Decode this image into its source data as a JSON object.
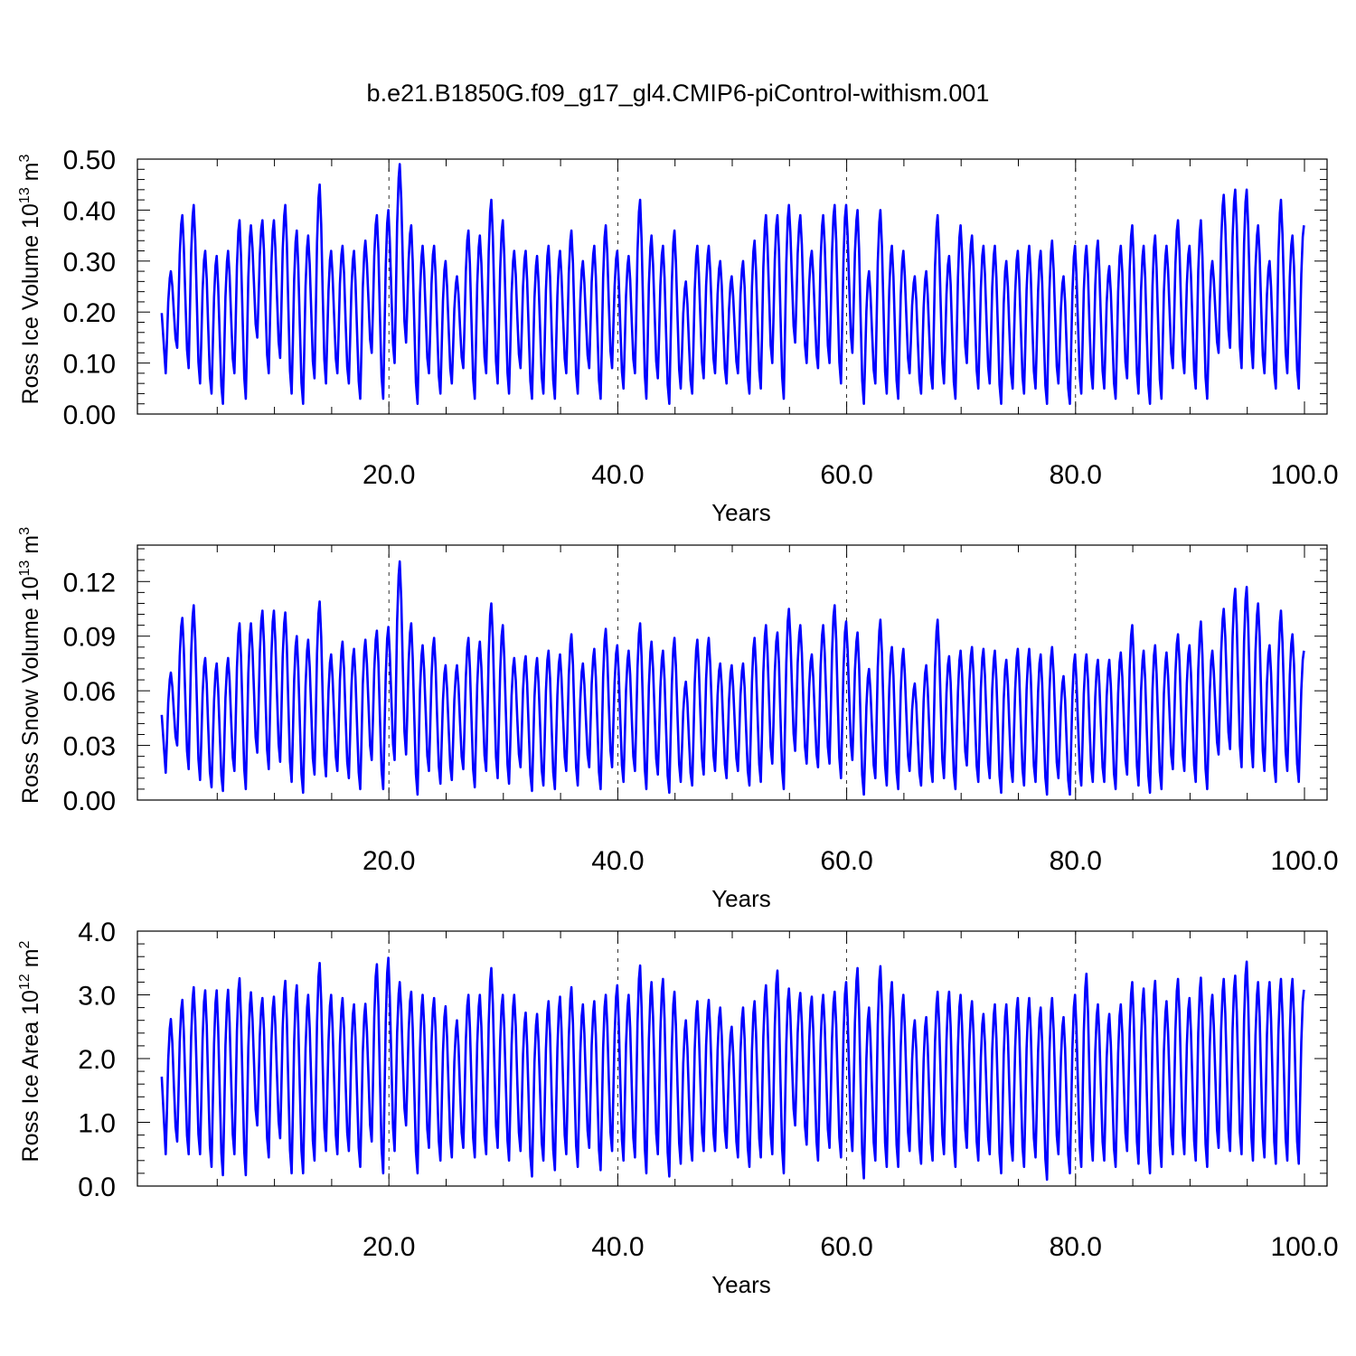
{
  "title": "b.e21.B1850G.f09_g17_gl4.CMIP6-piControl-withism.001",
  "line_color": "#0000ff",
  "chart_data": [
    {
      "type": "line",
      "ylabel": "Ross Ice Volume 10",
      "ylabel_exp": "13",
      "ylabel_unit": " m",
      "ylabel_unit_exp": "3",
      "xlabel": "Years",
      "xlim": [
        0.0,
        100.0
      ],
      "ylim": [
        0.0,
        0.5
      ],
      "xticks": [
        20,
        40,
        60,
        80,
        100
      ],
      "xticklabels": [
        "20.0",
        "40.0",
        "60.0",
        "80.0",
        "100.0"
      ],
      "yticks": [
        0.0,
        0.1,
        0.2,
        0.3,
        0.4,
        0.5
      ],
      "yticklabels": [
        "0.00",
        "0.10",
        "0.20",
        "0.30",
        "0.40",
        "0.50"
      ],
      "grid": "vertical dashed at major x ticks",
      "series": [
        {
          "years_start": 0.5,
          "peaks": [
            0.28,
            0.39,
            0.41,
            0.32,
            0.31,
            0.32,
            0.38,
            0.37,
            0.38,
            0.38,
            0.41,
            0.36,
            0.35,
            0.45,
            0.32,
            0.33,
            0.32,
            0.34,
            0.39,
            0.4,
            0.49,
            0.37,
            0.33,
            0.33,
            0.3,
            0.27,
            0.36,
            0.35,
            0.42,
            0.38,
            0.32,
            0.32,
            0.31,
            0.33,
            0.32,
            0.36,
            0.3,
            0.33,
            0.37,
            0.32,
            0.31,
            0.42,
            0.35,
            0.33,
            0.36,
            0.26,
            0.33,
            0.33,
            0.3,
            0.27,
            0.3,
            0.34,
            0.39,
            0.39,
            0.41,
            0.39,
            0.32,
            0.39,
            0.41,
            0.41,
            0.4,
            0.28,
            0.4,
            0.33,
            0.32,
            0.27,
            0.28,
            0.39,
            0.31,
            0.37,
            0.35,
            0.33,
            0.33,
            0.3,
            0.32,
            0.33,
            0.32,
            0.34,
            0.27,
            0.33,
            0.33,
            0.34,
            0.29,
            0.33,
            0.37,
            0.33,
            0.35,
            0.33,
            0.38,
            0.33,
            0.38,
            0.3,
            0.43,
            0.44,
            0.44,
            0.37,
            0.3,
            0.42,
            0.35,
            0.37
          ],
          "troughs": [
            0.08,
            0.13,
            0.09,
            0.06,
            0.04,
            0.02,
            0.08,
            0.03,
            0.15,
            0.08,
            0.11,
            0.04,
            0.02,
            0.07,
            0.06,
            0.08,
            0.06,
            0.03,
            0.12,
            0.03,
            0.1,
            0.14,
            0.02,
            0.08,
            0.04,
            0.06,
            0.09,
            0.03,
            0.08,
            0.06,
            0.04,
            0.09,
            0.03,
            0.04,
            0.03,
            0.08,
            0.04,
            0.09,
            0.03,
            0.09,
            0.05,
            0.08,
            0.03,
            0.07,
            0.02,
            0.05,
            0.04,
            0.07,
            0.08,
            0.06,
            0.08,
            0.04,
            0.05,
            0.1,
            0.03,
            0.14,
            0.1,
            0.09,
            0.1,
            0.06,
            0.12,
            0.02,
            0.06,
            0.04,
            0.03,
            0.08,
            0.04,
            0.05,
            0.06,
            0.03,
            0.1,
            0.05,
            0.06,
            0.02,
            0.05,
            0.04,
            0.05,
            0.02,
            0.06,
            0.02,
            0.04,
            0.05,
            0.05,
            0.03,
            0.07,
            0.04,
            0.02,
            0.03,
            0.09,
            0.08,
            0.05,
            0.03,
            0.12,
            0.13,
            0.09,
            0.09,
            0.08,
            0.05,
            0.08,
            0.05
          ]
        }
      ]
    },
    {
      "type": "line",
      "ylabel": "Ross Snow Volume 10",
      "ylabel_exp": "13",
      "ylabel_unit": " m",
      "ylabel_unit_exp": "3",
      "xlabel": "Years",
      "xlim": [
        0.0,
        100.0
      ],
      "ylim": [
        0.0,
        0.14
      ],
      "xticks": [
        20,
        40,
        60,
        80,
        100
      ],
      "xticklabels": [
        "20.0",
        "40.0",
        "60.0",
        "80.0",
        "100.0"
      ],
      "yticks": [
        0.0,
        0.03,
        0.06,
        0.09,
        0.12
      ],
      "yticklabels": [
        "0.00",
        "0.03",
        "0.06",
        "0.09",
        "0.12"
      ],
      "grid": "vertical dashed at major x ticks",
      "series": [
        {
          "years_start": 0.5,
          "peaks": [
            0.07,
            0.1,
            0.107,
            0.078,
            0.075,
            0.078,
            0.097,
            0.097,
            0.104,
            0.104,
            0.103,
            0.09,
            0.088,
            0.109,
            0.08,
            0.087,
            0.083,
            0.088,
            0.093,
            0.095,
            0.131,
            0.097,
            0.085,
            0.089,
            0.074,
            0.074,
            0.089,
            0.087,
            0.108,
            0.096,
            0.078,
            0.079,
            0.078,
            0.082,
            0.08,
            0.091,
            0.075,
            0.083,
            0.094,
            0.085,
            0.082,
            0.097,
            0.087,
            0.082,
            0.089,
            0.065,
            0.088,
            0.089,
            0.075,
            0.074,
            0.075,
            0.089,
            0.096,
            0.092,
            0.105,
            0.096,
            0.08,
            0.096,
            0.107,
            0.098,
            0.092,
            0.072,
            0.099,
            0.084,
            0.083,
            0.064,
            0.074,
            0.099,
            0.079,
            0.082,
            0.084,
            0.083,
            0.082,
            0.077,
            0.083,
            0.083,
            0.08,
            0.084,
            0.068,
            0.08,
            0.08,
            0.077,
            0.077,
            0.081,
            0.096,
            0.082,
            0.085,
            0.081,
            0.091,
            0.085,
            0.098,
            0.082,
            0.105,
            0.116,
            0.117,
            0.108,
            0.085,
            0.104,
            0.091,
            0.082
          ],
          "troughs": [
            0.015,
            0.03,
            0.017,
            0.011,
            0.007,
            0.005,
            0.016,
            0.006,
            0.026,
            0.017,
            0.021,
            0.01,
            0.004,
            0.014,
            0.013,
            0.016,
            0.012,
            0.006,
            0.022,
            0.006,
            0.022,
            0.025,
            0.003,
            0.016,
            0.009,
            0.011,
            0.017,
            0.007,
            0.016,
            0.012,
            0.009,
            0.018,
            0.005,
            0.008,
            0.006,
            0.016,
            0.008,
            0.018,
            0.006,
            0.018,
            0.01,
            0.016,
            0.006,
            0.014,
            0.004,
            0.01,
            0.008,
            0.014,
            0.016,
            0.012,
            0.016,
            0.008,
            0.01,
            0.02,
            0.006,
            0.027,
            0.02,
            0.018,
            0.02,
            0.012,
            0.022,
            0.003,
            0.012,
            0.008,
            0.006,
            0.016,
            0.008,
            0.01,
            0.012,
            0.006,
            0.019,
            0.01,
            0.012,
            0.004,
            0.01,
            0.008,
            0.01,
            0.003,
            0.012,
            0.003,
            0.008,
            0.01,
            0.01,
            0.006,
            0.014,
            0.008,
            0.004,
            0.006,
            0.017,
            0.016,
            0.01,
            0.006,
            0.025,
            0.028,
            0.018,
            0.018,
            0.016,
            0.01,
            0.016,
            0.01
          ]
        }
      ]
    },
    {
      "type": "line",
      "ylabel": "Ross Ice Area 10",
      "ylabel_exp": "12",
      "ylabel_unit": " m",
      "ylabel_unit_exp": "2",
      "xlabel": "Years",
      "xlim": [
        0.0,
        100.0
      ],
      "ylim": [
        0.0,
        4.0
      ],
      "xticks": [
        20,
        40,
        60,
        80,
        100
      ],
      "xticklabels": [
        "20.0",
        "40.0",
        "60.0",
        "80.0",
        "100.0"
      ],
      "yticks": [
        0.0,
        1.0,
        2.0,
        3.0,
        4.0
      ],
      "yticklabels": [
        "0.0",
        "1.0",
        "2.0",
        "3.0",
        "4.0"
      ],
      "grid": "vertical dashed at major x ticks",
      "series": [
        {
          "years_start": 0.5,
          "peaks": [
            2.62,
            2.92,
            3.12,
            3.07,
            3.07,
            3.08,
            3.26,
            3.04,
            2.95,
            2.97,
            3.22,
            3.15,
            3.0,
            3.5,
            3.0,
            2.95,
            2.85,
            2.86,
            3.48,
            3.58,
            3.2,
            3.05,
            3.0,
            2.95,
            2.82,
            2.6,
            3.0,
            3.0,
            3.42,
            3.0,
            3.0,
            2.72,
            2.7,
            2.9,
            2.97,
            3.12,
            2.85,
            2.9,
            3.0,
            3.15,
            3.0,
            3.46,
            3.2,
            3.25,
            3.05,
            2.6,
            2.9,
            2.92,
            2.8,
            2.5,
            2.8,
            2.9,
            3.15,
            3.38,
            3.1,
            3.03,
            2.97,
            3.0,
            3.05,
            3.2,
            3.42,
            2.8,
            3.45,
            3.2,
            3.0,
            2.6,
            2.65,
            3.05,
            3.05,
            3.0,
            2.9,
            2.7,
            2.85,
            2.85,
            2.95,
            2.95,
            2.8,
            2.95,
            2.65,
            3.0,
            3.33,
            2.85,
            2.7,
            2.85,
            3.2,
            3.1,
            3.22,
            2.9,
            3.25,
            2.95,
            3.27,
            3.0,
            3.25,
            3.3,
            3.52,
            3.2,
            3.2,
            3.25,
            3.25,
            3.08
          ],
          "troughs": [
            0.5,
            0.7,
            0.5,
            0.5,
            0.3,
            0.17,
            0.5,
            0.17,
            0.95,
            0.45,
            0.75,
            0.2,
            0.2,
            0.4,
            0.55,
            0.5,
            0.55,
            0.3,
            0.7,
            0.2,
            0.55,
            0.95,
            0.2,
            0.6,
            0.4,
            0.45,
            0.6,
            0.45,
            0.5,
            0.6,
            0.4,
            0.55,
            0.15,
            0.4,
            0.25,
            0.5,
            0.3,
            0.6,
            0.25,
            0.55,
            0.4,
            0.45,
            0.2,
            0.5,
            0.15,
            0.35,
            0.4,
            0.55,
            0.55,
            0.6,
            0.45,
            0.3,
            0.45,
            0.5,
            0.2,
            0.95,
            0.65,
            0.4,
            0.6,
            0.45,
            0.55,
            0.12,
            0.4,
            0.3,
            0.3,
            0.55,
            0.35,
            0.4,
            0.5,
            0.3,
            0.6,
            0.4,
            0.5,
            0.2,
            0.4,
            0.3,
            0.45,
            0.1,
            0.5,
            0.2,
            0.3,
            0.4,
            0.4,
            0.3,
            0.55,
            0.35,
            0.2,
            0.3,
            0.5,
            0.5,
            0.4,
            0.3,
            0.6,
            0.55,
            0.5,
            0.4,
            0.45,
            0.35,
            0.4,
            0.35
          ]
        }
      ]
    }
  ]
}
